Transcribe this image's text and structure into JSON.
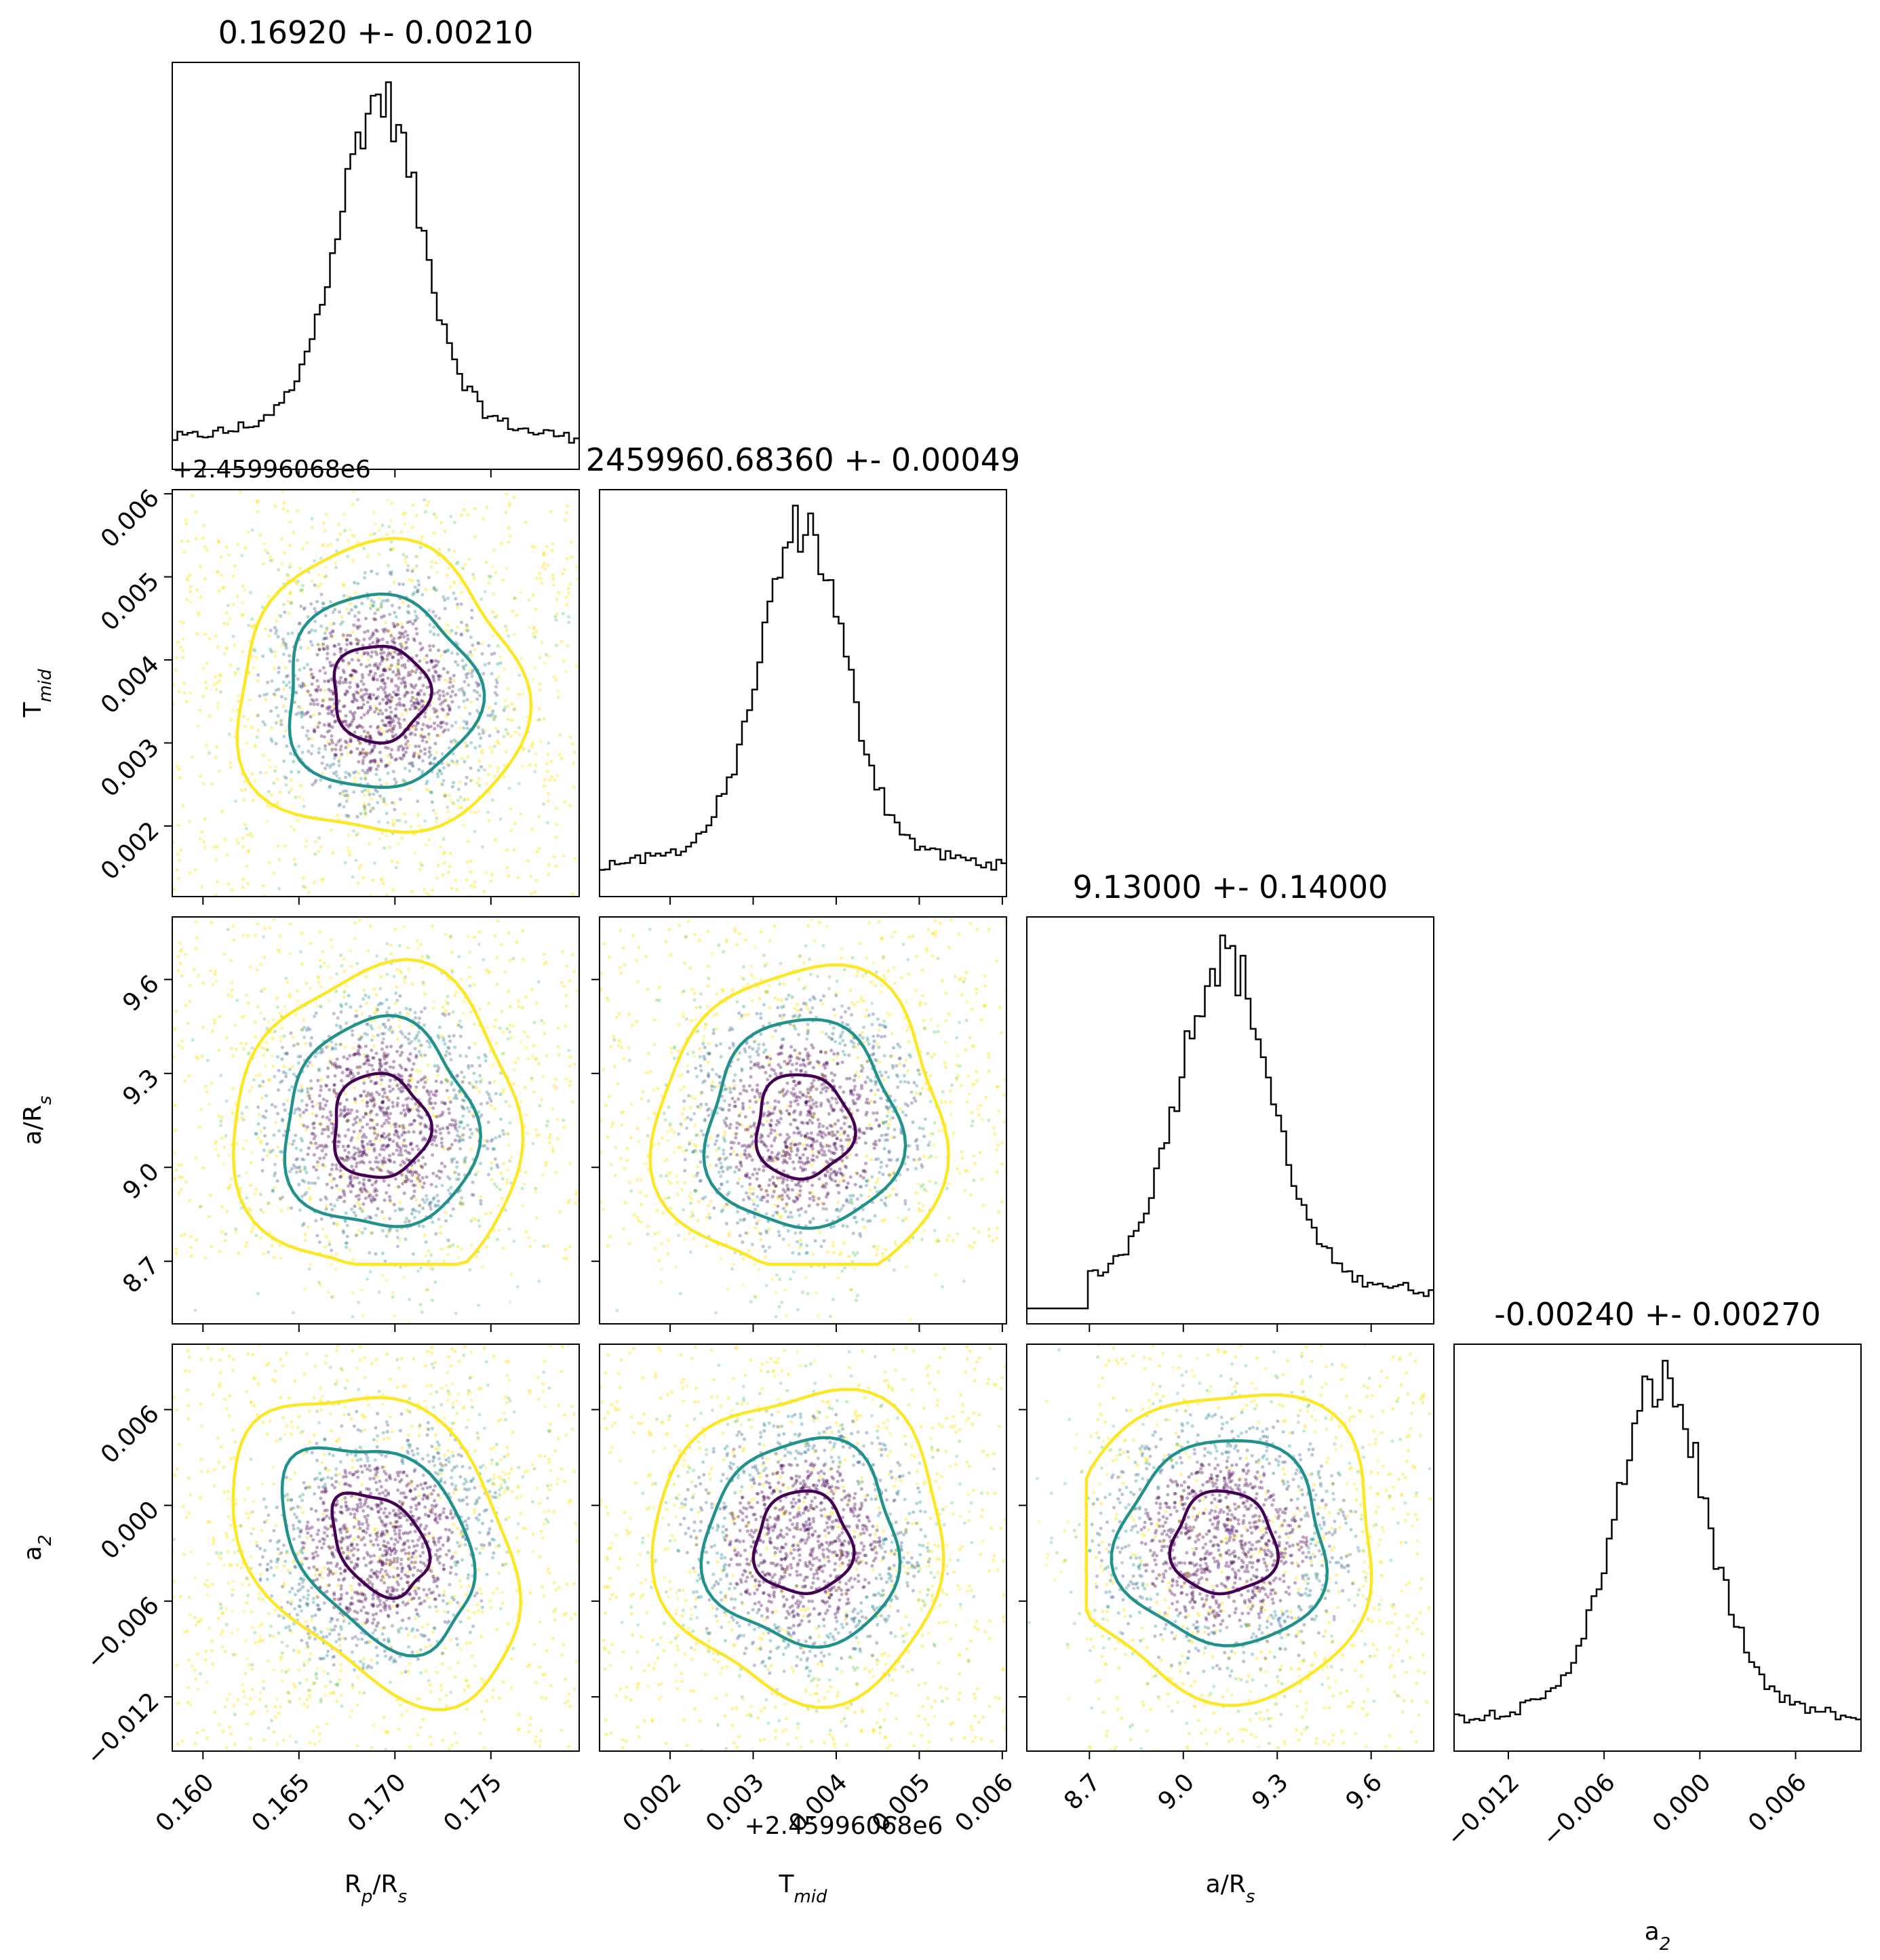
{
  "chart_data": {
    "type": "corner",
    "parameters": [
      {
        "key": "rp",
        "label": "R_p/R_s",
        "title": "0.16920 +- 0.00210",
        "median": 0.1692,
        "sigma": 0.0021,
        "range": [
          0.1584,
          0.1796
        ],
        "ticks": [
          0.16,
          0.165,
          0.17,
          0.175
        ],
        "tick_labels": [
          "0.160",
          "0.165",
          "0.170",
          "0.175"
        ]
      },
      {
        "key": "tmid",
        "label": "T_mid",
        "title": "2459960.68360 +- 0.00049",
        "median": 0.0036,
        "sigma": 0.00049,
        "range": [
          0.00115,
          0.00605
        ],
        "ticks": [
          0.002,
          0.003,
          0.004,
          0.005,
          0.006
        ],
        "tick_labels": [
          "0.002",
          "0.003",
          "0.004",
          "0.005",
          "0.006"
        ],
        "offset_text": "+2.45996068e6"
      },
      {
        "key": "ars",
        "label": "a/R_s",
        "title": "9.13000 +- 0.14000",
        "median": 9.13,
        "sigma": 0.14,
        "range": [
          8.5,
          9.8
        ],
        "ticks": [
          8.7,
          9.0,
          9.3,
          9.6
        ],
        "tick_labels": [
          "8.7",
          "9.0",
          "9.3",
          "9.6"
        ]
      },
      {
        "key": "a2",
        "label": "a_2",
        "title": "-0.00240 +- 0.00270",
        "median": -0.0024,
        "sigma": 0.0027,
        "range": [
          -0.0154,
          0.0101
        ],
        "ticks": [
          -0.012,
          -0.006,
          0.0,
          0.006
        ],
        "tick_labels": [
          "−0.012",
          "−0.006",
          "0.000",
          "0.006"
        ]
      }
    ],
    "contour_colors": [
      "#440154",
      "#21918c",
      "#fde725"
    ],
    "contour_levels_sigma": [
      1,
      2,
      3
    ],
    "grid": false
  }
}
